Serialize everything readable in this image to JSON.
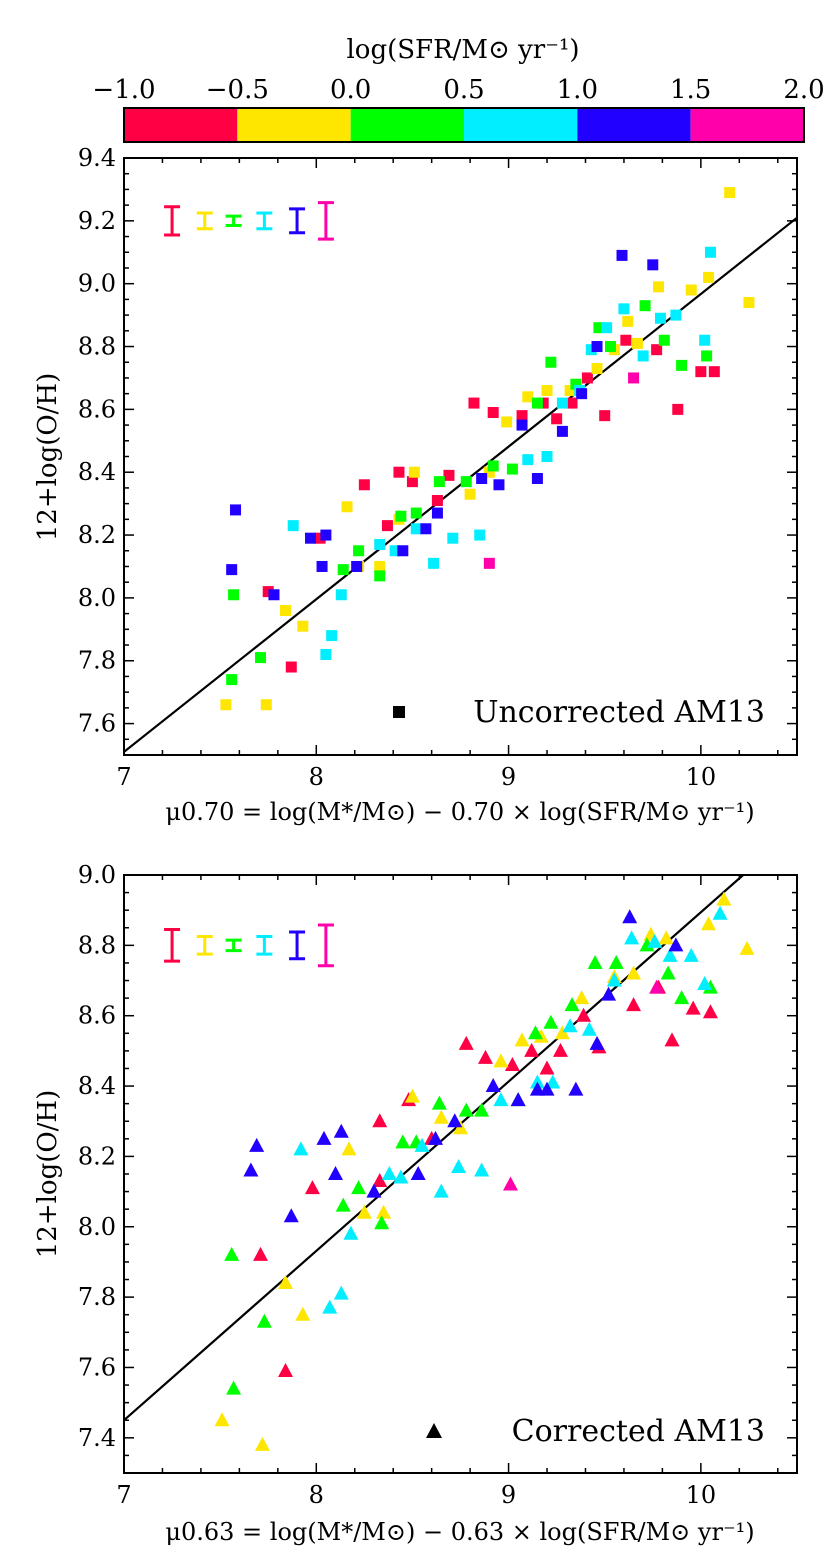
{
  "colorbar": {
    "label": "log(SFR/M⊙ yr⁻¹)",
    "ticks": [
      "−1.0",
      "−0.5",
      "0.0",
      "0.5",
      "1.0",
      "1.5",
      "2.0"
    ],
    "bins": [
      {
        "range": [
          -1.0,
          -0.5
        ],
        "color": "#ff0044"
      },
      {
        "range": [
          -0.5,
          0.0
        ],
        "color": "#ffe600"
      },
      {
        "range": [
          0.0,
          0.5
        ],
        "color": "#00ff00"
      },
      {
        "range": [
          0.5,
          1.0
        ],
        "color": "#00eeff"
      },
      {
        "range": [
          1.0,
          1.5
        ],
        "color": "#2200ff"
      },
      {
        "range": [
          1.5,
          2.0
        ],
        "color": "#ff00aa"
      }
    ]
  },
  "chart_data": [
    {
      "type": "scatter",
      "marker": "square",
      "legend": "Uncorrected AM13",
      "legend_position": "bottom-right",
      "xlabel": "μ0.70 = log(M*/M⊙) − 0.70 × log(SFR/M⊙ yr⁻¹)",
      "ylabel": "12+log(O/H)",
      "xlim": [
        7,
        10.5
      ],
      "ylim": [
        7.5,
        9.4
      ],
      "xticks": [
        "7",
        "8",
        "9",
        "10"
      ],
      "yticks": [
        "7.6",
        "7.8",
        "8.0",
        "8.2",
        "8.4",
        "8.6",
        "8.8",
        "9.0",
        "9.2",
        "9.4"
      ],
      "fit_line": {
        "x": [
          7.0,
          10.5
        ],
        "y": [
          7.51,
          9.21
        ]
      },
      "error_bars": {
        "x": [
          7.25,
          7.42,
          7.57,
          7.73,
          7.9,
          8.05
        ],
        "y": 9.2,
        "half_heights": [
          0.045,
          0.025,
          0.015,
          0.025,
          0.038,
          0.058
        ]
      },
      "series": [
        {
          "name": "-1.0 to -0.5",
          "color": "#ff0044",
          "x": [
            7.75,
            7.87,
            8.02,
            8.25,
            8.37,
            8.43,
            8.5,
            8.63,
            8.69,
            8.82,
            8.92,
            9.07,
            9.18,
            9.25,
            9.33,
            9.41,
            9.5,
            9.61,
            9.77,
            9.88,
            10.0,
            10.07
          ],
          "y": [
            8.02,
            7.78,
            8.19,
            8.36,
            8.23,
            8.4,
            8.37,
            8.31,
            8.39,
            8.62,
            8.59,
            8.58,
            8.62,
            8.57,
            8.62,
            8.7,
            8.58,
            8.82,
            8.79,
            8.6,
            8.72,
            8.72
          ]
        },
        {
          "name": "-0.5 to 0.0",
          "color": "#ffe600",
          "x": [
            7.53,
            7.74,
            7.84,
            7.93,
            8.16,
            8.22,
            8.33,
            8.43,
            8.51,
            8.8,
            8.9,
            8.99,
            9.1,
            9.2,
            9.32,
            9.46,
            9.55,
            9.67,
            9.78,
            9.95,
            10.04,
            10.25,
            10.15,
            9.62
          ],
          "y": [
            7.66,
            7.66,
            7.96,
            7.91,
            8.29,
            8.1,
            8.1,
            8.25,
            8.4,
            8.33,
            8.4,
            8.56,
            8.64,
            8.66,
            8.66,
            8.73,
            8.79,
            8.81,
            8.99,
            8.98,
            9.02,
            8.94,
            9.29,
            8.88
          ]
        },
        {
          "name": "0.0 to 0.5",
          "color": "#00ff00",
          "x": [
            7.56,
            7.57,
            7.71,
            8.14,
            8.22,
            8.33,
            8.44,
            8.52,
            8.64,
            8.78,
            8.92,
            9.02,
            9.15,
            9.22,
            9.35,
            9.47,
            9.53,
            9.71,
            9.81,
            9.9,
            10.03
          ],
          "y": [
            7.74,
            8.01,
            7.81,
            8.09,
            8.15,
            8.07,
            8.26,
            8.27,
            8.37,
            8.37,
            8.42,
            8.41,
            8.62,
            8.75,
            8.68,
            8.86,
            8.8,
            8.93,
            8.82,
            8.74,
            8.77
          ]
        },
        {
          "name": "0.5 to 1.0",
          "color": "#00eeff",
          "x": [
            7.88,
            8.05,
            8.08,
            8.13,
            8.33,
            8.41,
            8.52,
            8.61,
            8.71,
            8.85,
            9.1,
            9.2,
            9.28,
            9.37,
            9.43,
            9.51,
            9.6,
            9.7,
            9.79,
            9.87,
            10.02,
            10.05
          ],
          "y": [
            8.23,
            7.82,
            7.88,
            8.01,
            8.17,
            8.15,
            8.22,
            8.11,
            8.19,
            8.2,
            8.44,
            8.45,
            8.62,
            8.66,
            8.79,
            8.86,
            8.92,
            8.77,
            8.89,
            8.9,
            8.82,
            9.1
          ]
        },
        {
          "name": "1.0 to 1.5",
          "color": "#2200ff",
          "x": [
            7.56,
            7.58,
            7.78,
            7.97,
            8.03,
            8.05,
            8.21,
            8.45,
            8.57,
            8.63,
            8.86,
            8.95,
            9.07,
            9.15,
            9.28,
            9.38,
            9.46,
            9.59,
            9.75
          ],
          "y": [
            8.09,
            8.28,
            8.01,
            8.19,
            8.1,
            8.2,
            8.1,
            8.15,
            8.22,
            8.27,
            8.38,
            8.36,
            8.55,
            8.38,
            8.53,
            8.65,
            8.8,
            9.09,
            9.06
          ]
        },
        {
          "name": "1.5 to 2.0",
          "color": "#ff00aa",
          "x": [
            8.9,
            9.65
          ],
          "y": [
            8.11,
            8.7
          ]
        }
      ]
    },
    {
      "type": "scatter",
      "marker": "triangle",
      "legend": "Corrected AM13",
      "legend_position": "bottom-right",
      "xlabel": "μ0.63 = log(M*/M⊙) − 0.63 × log(SFR/M⊙ yr⁻¹)",
      "ylabel": "12+log(O/H)",
      "xlim": [
        7,
        10.5
      ],
      "ylim": [
        7.3,
        9.0
      ],
      "xticks": [
        "7",
        "8",
        "9",
        "10"
      ],
      "yticks": [
        "7.4",
        "7.6",
        "7.8",
        "8.0",
        "8.2",
        "8.4",
        "8.6",
        "8.8",
        "9.0"
      ],
      "fit_line": {
        "x": [
          7.0,
          10.22
        ],
        "y": [
          7.45,
          9.0
        ]
      },
      "error_bars": {
        "x": [
          7.25,
          7.42,
          7.57,
          7.73,
          7.9,
          8.05
        ],
        "y": 8.8,
        "half_heights": [
          0.045,
          0.025,
          0.015,
          0.025,
          0.038,
          0.058
        ]
      },
      "series": [
        {
          "name": "-1.0 to -0.5",
          "color": "#ff0044",
          "x": [
            7.71,
            7.84,
            7.98,
            8.33,
            8.33,
            8.48,
            8.6,
            8.78,
            8.88,
            9.02,
            9.12,
            9.2,
            9.27,
            9.39,
            9.47,
            9.65,
            9.78,
            9.85,
            9.96,
            10.05
          ],
          "y": [
            7.92,
            7.59,
            8.11,
            8.3,
            8.13,
            8.36,
            8.25,
            8.52,
            8.48,
            8.46,
            8.5,
            8.45,
            8.5,
            8.6,
            8.51,
            8.63,
            8.68,
            8.53,
            8.62,
            8.61
          ]
        },
        {
          "name": "-0.5 to 0.0",
          "color": "#ffe600",
          "x": [
            7.51,
            7.72,
            7.84,
            7.93,
            8.17,
            8.25,
            8.35,
            8.5,
            8.65,
            8.75,
            8.96,
            9.07,
            9.17,
            9.28,
            9.38,
            9.55,
            9.65,
            9.74,
            9.82,
            10.04,
            10.12,
            10.24
          ],
          "y": [
            7.45,
            7.38,
            7.84,
            7.75,
            8.22,
            8.04,
            8.04,
            8.37,
            8.31,
            8.28,
            8.47,
            8.53,
            8.54,
            8.55,
            8.65,
            8.71,
            8.72,
            8.83,
            8.82,
            8.86,
            8.93,
            8.79
          ]
        },
        {
          "name": "0.0 to 0.5",
          "color": "#00ff00",
          "x": [
            7.56,
            7.57,
            7.73,
            8.14,
            8.22,
            8.34,
            8.45,
            8.52,
            8.64,
            8.78,
            8.86,
            9.05,
            9.14,
            9.22,
            9.33,
            9.45,
            9.56,
            9.72,
            9.83,
            9.9,
            10.05
          ],
          "y": [
            7.92,
            7.54,
            7.73,
            8.06,
            8.11,
            8.01,
            8.24,
            8.24,
            8.35,
            8.33,
            8.33,
            8.36,
            8.55,
            8.58,
            8.63,
            8.75,
            8.75,
            8.8,
            8.72,
            8.65,
            8.68
          ]
        },
        {
          "name": "0.5 to 1.0",
          "color": "#00eeff",
          "x": [
            7.92,
            8.07,
            8.13,
            8.18,
            8.38,
            8.44,
            8.55,
            8.65,
            8.74,
            8.86,
            8.96,
            9.15,
            9.23,
            9.32,
            9.42,
            9.55,
            9.64,
            9.76,
            9.84,
            9.95,
            10.02,
            10.1
          ],
          "y": [
            8.22,
            7.77,
            7.81,
            7.98,
            8.15,
            8.14,
            8.23,
            8.1,
            8.17,
            8.16,
            8.36,
            8.41,
            8.41,
            8.57,
            8.56,
            8.7,
            8.82,
            8.81,
            8.77,
            8.77,
            8.69,
            8.89
          ]
        },
        {
          "name": "1.0 to 1.5",
          "color": "#2200ff",
          "x": [
            7.66,
            7.69,
            7.87,
            8.04,
            8.1,
            8.13,
            8.3,
            8.53,
            8.62,
            8.72,
            8.92,
            9.05,
            9.15,
            9.2,
            9.35,
            9.46,
            9.52,
            9.63,
            9.87
          ],
          "y": [
            8.16,
            8.23,
            8.03,
            8.25,
            8.15,
            8.27,
            8.1,
            8.15,
            8.25,
            8.3,
            8.4,
            8.36,
            8.39,
            8.39,
            8.39,
            8.52,
            8.66,
            8.88,
            8.8
          ]
        },
        {
          "name": "1.5 to 2.0",
          "color": "#ff00aa",
          "x": [
            9.01,
            9.77
          ],
          "y": [
            8.12,
            8.68
          ]
        }
      ]
    }
  ]
}
